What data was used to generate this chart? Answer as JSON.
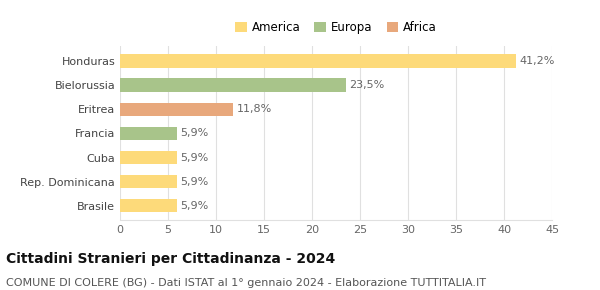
{
  "categories": [
    "Brasile",
    "Rep. Dominicana",
    "Cuba",
    "Francia",
    "Eritrea",
    "Bielorussia",
    "Honduras"
  ],
  "values": [
    5.9,
    5.9,
    5.9,
    5.9,
    11.8,
    23.5,
    41.2
  ],
  "labels": [
    "5,9%",
    "5,9%",
    "5,9%",
    "5,9%",
    "11,8%",
    "23,5%",
    "41,2%"
  ],
  "colors": [
    "#FDDA7A",
    "#FDDA7A",
    "#FDDA7A",
    "#A8C48A",
    "#E8A87C",
    "#A8C48A",
    "#FDDA7A"
  ],
  "legend": [
    {
      "label": "America",
      "color": "#FDDA7A"
    },
    {
      "label": "Europa",
      "color": "#A8C48A"
    },
    {
      "label": "Africa",
      "color": "#E8A87C"
    }
  ],
  "title": "Cittadini Stranieri per Cittadinanza - 2024",
  "subtitle": "COMUNE DI COLERE (BG) - Dati ISTAT al 1° gennaio 2024 - Elaborazione TUTTITALIA.IT",
  "xlim": [
    0,
    45
  ],
  "xticks": [
    0,
    5,
    10,
    15,
    20,
    25,
    30,
    35,
    40,
    45
  ],
  "background_color": "#ffffff",
  "grid_color": "#e0e0e0",
  "title_fontsize": 10,
  "subtitle_fontsize": 8,
  "label_fontsize": 8,
  "tick_fontsize": 8,
  "bar_height": 0.55
}
